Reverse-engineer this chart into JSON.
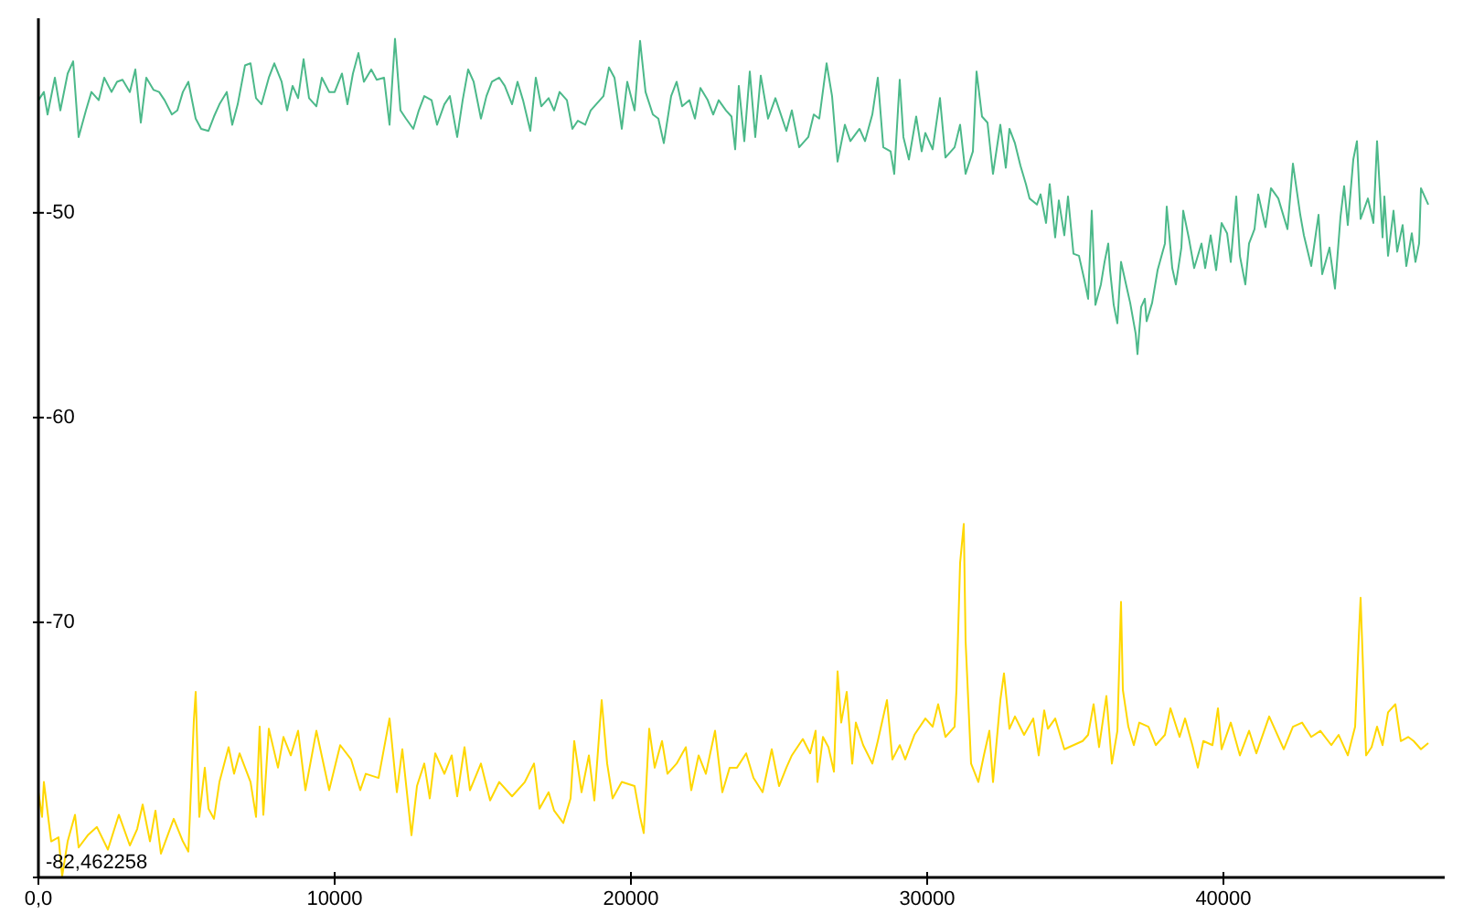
{
  "chart_data": {
    "type": "line",
    "xlim": [
      0,
      47470
    ],
    "ylim": [
      -82.462258,
      -40.5
    ],
    "xticks": [
      {
        "value": 0,
        "label": "0,0"
      },
      10000,
      20000,
      30000,
      40000
    ],
    "yticks": [
      -50,
      -60,
      -70,
      {
        "value": -82.462258,
        "label": "-82,462258"
      }
    ],
    "series": [
      {
        "color": "#4cb98a",
        "x": [
          0,
          185,
          309,
          556,
          741,
          988,
          1173,
          1358,
          1605,
          1790,
          2037,
          2222,
          2469,
          2654,
          2840,
          3087,
          3272,
          3457,
          3642,
          3889,
          4074,
          4259,
          4506,
          4691,
          4877,
          5062,
          5309,
          5494,
          5741,
          5926,
          6111,
          6358,
          6543,
          6728,
          6975,
          7161,
          7346,
          7531,
          7778,
          7963,
          8210,
          8395,
          8580,
          8766,
          8951,
          9136,
          9383,
          9568,
          9815,
          10000,
          10247,
          10432,
          10617,
          10803,
          10988,
          11235,
          11420,
          11667,
          11852,
          12037,
          12222,
          12407,
          12654,
          12840,
          13025,
          13272,
          13457,
          13704,
          13889,
          14136,
          14321,
          14506,
          14692,
          14938,
          15124,
          15309,
          15556,
          15741,
          15988,
          16173,
          16358,
          16605,
          16790,
          16976,
          17223,
          17408,
          17593,
          17840,
          18025,
          18210,
          18457,
          18642,
          18827,
          19074,
          19259,
          19445,
          19692,
          19877,
          20124,
          20309,
          20494,
          20741,
          20926,
          21111,
          21358,
          21544,
          21729,
          21976,
          22161,
          22346,
          22593,
          22778,
          22963,
          23210,
          23396,
          23519,
          23642,
          23828,
          24013,
          24198,
          24383,
          24630,
          24877,
          25247,
          25432,
          25679,
          25988,
          26173,
          26358,
          26605,
          26790,
          26976,
          27223,
          27408,
          27717,
          27902,
          28149,
          28334,
          28519,
          28766,
          28889,
          29074,
          29198,
          29383,
          29630,
          29815,
          29938,
          30185,
          30432,
          30618,
          30926,
          31111,
          31297,
          31544,
          31667,
          31852,
          32037,
          32222,
          32469,
          32655,
          32778,
          32963,
          33149,
          33334,
          33457,
          33704,
          33828,
          34013,
          34136,
          34321,
          34445,
          34630,
          34754,
          34939,
          35124,
          35310,
          35433,
          35556,
          35680,
          35865,
          35988,
          36112,
          36173,
          36297,
          36420,
          36544,
          36729,
          36853,
          37038,
          37100,
          37223,
          37347,
          37408,
          37593,
          37779,
          38026,
          38087,
          38273,
          38396,
          38581,
          38643,
          38828,
          39013,
          39260,
          39384,
          39569,
          39754,
          39939,
          40124,
          40248,
          40433,
          40556,
          40741,
          40865,
          41050,
          41174,
          41421,
          41606,
          41853,
          42162,
          42347,
          42594,
          42717,
          42964,
          43211,
          43334,
          43581,
          43766,
          43952,
          44075,
          44198,
          44384,
          44507,
          44631,
          44878,
          45063,
          45186,
          45372,
          45433,
          45557,
          45742,
          45865,
          46050,
          46174,
          46359,
          46482,
          46606,
          46668,
          46915
        ],
        "values": [
          -44.5,
          -44.1,
          -45.2,
          -43.4,
          -45.0,
          -43.2,
          -42.6,
          -46.3,
          -45.0,
          -44.1,
          -44.5,
          -43.4,
          -44.1,
          -43.6,
          -43.5,
          -44.1,
          -43.0,
          -45.6,
          -43.4,
          -44.0,
          -44.1,
          -44.5,
          -45.2,
          -45.0,
          -44.1,
          -43.6,
          -45.4,
          -45.9,
          -46.0,
          -45.3,
          -44.7,
          -44.1,
          -45.7,
          -44.7,
          -42.8,
          -42.7,
          -44.4,
          -44.7,
          -43.4,
          -42.7,
          -43.6,
          -45.0,
          -43.8,
          -44.4,
          -42.5,
          -44.4,
          -44.8,
          -43.4,
          -44.1,
          -44.1,
          -43.2,
          -44.7,
          -43.2,
          -42.2,
          -43.6,
          -43.0,
          -43.5,
          -43.4,
          -45.7,
          -41.5,
          -45.0,
          -45.4,
          -45.9,
          -45.0,
          -44.3,
          -44.5,
          -45.7,
          -44.7,
          -44.3,
          -46.3,
          -44.5,
          -43.0,
          -43.6,
          -45.4,
          -44.3,
          -43.6,
          -43.4,
          -43.8,
          -44.7,
          -43.6,
          -44.5,
          -46.0,
          -43.4,
          -44.8,
          -44.4,
          -45.0,
          -44.1,
          -44.5,
          -45.9,
          -45.5,
          -45.7,
          -45.0,
          -44.7,
          -44.3,
          -42.9,
          -43.4,
          -45.9,
          -43.6,
          -45.0,
          -41.6,
          -44.1,
          -45.2,
          -45.4,
          -46.6,
          -44.3,
          -43.6,
          -44.8,
          -44.5,
          -45.4,
          -43.9,
          -44.5,
          -45.2,
          -44.5,
          -45.0,
          -45.3,
          -46.9,
          -43.8,
          -46.5,
          -43.1,
          -46.3,
          -43.3,
          -45.4,
          -44.4,
          -46.0,
          -45.0,
          -46.8,
          -46.3,
          -45.2,
          -45.4,
          -42.7,
          -44.3,
          -47.5,
          -45.7,
          -46.5,
          -45.9,
          -46.5,
          -45.2,
          -43.4,
          -46.8,
          -47.0,
          -48.1,
          -43.5,
          -46.3,
          -47.4,
          -45.3,
          -47.0,
          -46.1,
          -46.9,
          -44.4,
          -47.3,
          -46.8,
          -45.7,
          -48.1,
          -47.0,
          -43.1,
          -45.3,
          -45.6,
          -48.1,
          -45.7,
          -47.8,
          -45.9,
          -46.6,
          -47.7,
          -48.6,
          -49.3,
          -49.6,
          -49.1,
          -50.5,
          -48.6,
          -51.2,
          -49.4,
          -51.1,
          -49.2,
          -52.0,
          -52.1,
          -53.3,
          -54.2,
          -49.9,
          -54.5,
          -53.5,
          -52.4,
          -51.5,
          -52.8,
          -54.5,
          -55.4,
          -52.4,
          -53.6,
          -54.4,
          -55.9,
          -56.9,
          -54.6,
          -54.2,
          -55.3,
          -54.4,
          -52.8,
          -51.5,
          -49.7,
          -52.7,
          -53.5,
          -51.7,
          -49.9,
          -51.2,
          -52.7,
          -51.5,
          -52.7,
          -51.1,
          -52.8,
          -50.5,
          -51.0,
          -52.4,
          -49.2,
          -52.1,
          -53.5,
          -51.5,
          -50.8,
          -49.1,
          -50.7,
          -48.8,
          -49.3,
          -50.8,
          -47.6,
          -50.1,
          -51.1,
          -52.6,
          -50.1,
          -53.0,
          -51.7,
          -53.7,
          -50.2,
          -48.7,
          -50.6,
          -47.4,
          -46.5,
          -50.3,
          -49.3,
          -50.5,
          -46.5,
          -51.2,
          -49.2,
          -52.1,
          -49.9,
          -51.9,
          -50.6,
          -52.6,
          -51.0,
          -52.4,
          -51.5,
          -48.8,
          -49.6
        ]
      },
      {
        "color": "#ffd700",
        "x": [
          0,
          123,
          185,
          432,
          679,
          802,
          988,
          1235,
          1358,
          1667,
          1975,
          2346,
          2716,
          3087,
          3334,
          3519,
          3766,
          3951,
          4136,
          4568,
          4877,
          5062,
          5247,
          5309,
          5432,
          5617,
          5741,
          5926,
          6111,
          6420,
          6605,
          6790,
          7161,
          7346,
          7469,
          7593,
          7778,
          8087,
          8272,
          8519,
          8766,
          9013,
          9383,
          9815,
          10186,
          10556,
          10865,
          11050,
          11482,
          11852,
          12099,
          12284,
          12593,
          12778,
          13025,
          13210,
          13395,
          13704,
          13951,
          14136,
          14383,
          14568,
          14938,
          15247,
          15556,
          15988,
          16420,
          16729,
          16914,
          17223,
          17408,
          17717,
          17963,
          18087,
          18334,
          18581,
          18766,
          19013,
          19198,
          19383,
          19692,
          20124,
          20309,
          20433,
          20618,
          20803,
          21050,
          21235,
          21544,
          21853,
          22038,
          22285,
          22531,
          22840,
          23087,
          23334,
          23581,
          23890,
          24137,
          24445,
          24754,
          25001,
          25248,
          25433,
          25803,
          26050,
          26235,
          26297,
          26482,
          26668,
          26853,
          26976,
          27099,
          27285,
          27470,
          27593,
          27840,
          28149,
          28334,
          28643,
          28828,
          29075,
          29260,
          29569,
          29939,
          30186,
          30371,
          30618,
          30927,
          30989,
          31112,
          31236,
          31297,
          31482,
          31729,
          31914,
          32100,
          32223,
          32470,
          32593,
          32778,
          32964,
          33272,
          33581,
          33766,
          33951,
          34075,
          34322,
          34630,
          34939,
          35248,
          35433,
          35618,
          35803,
          36050,
          36235,
          36421,
          36544,
          36606,
          36791,
          36976,
          37161,
          37470,
          37717,
          38026,
          38211,
          38520,
          38705,
          38952,
          39137,
          39322,
          39631,
          39816,
          39939,
          40248,
          40557,
          40866,
          41112,
          41545,
          42039,
          42347,
          42656,
          42964,
          43273,
          43643,
          43890,
          44199,
          44446,
          44570,
          44631,
          44816,
          45001,
          45186,
          45372,
          45557,
          45804,
          45989,
          46236,
          46421,
          46668,
          46915
        ],
        "values": [
          -78.3,
          -79.5,
          -77.8,
          -80.7,
          -80.5,
          -82.4,
          -80.7,
          -79.4,
          -81.0,
          -80.4,
          -80.0,
          -81.1,
          -79.4,
          -80.9,
          -80.1,
          -78.9,
          -80.7,
          -79.2,
          -81.3,
          -79.6,
          -80.7,
          -81.2,
          -74.8,
          -73.4,
          -79.5,
          -77.1,
          -79.1,
          -79.6,
          -77.8,
          -76.1,
          -77.4,
          -76.4,
          -77.8,
          -79.5,
          -75.1,
          -79.4,
          -75.2,
          -77.1,
          -75.6,
          -76.5,
          -75.3,
          -78.2,
          -75.3,
          -78.2,
          -76.0,
          -76.7,
          -78.2,
          -77.4,
          -77.6,
          -74.7,
          -78.3,
          -76.2,
          -80.4,
          -78.0,
          -76.9,
          -78.6,
          -76.4,
          -77.4,
          -76.5,
          -78.5,
          -76.1,
          -78.2,
          -76.9,
          -78.7,
          -77.8,
          -78.5,
          -77.8,
          -76.9,
          -79.1,
          -78.3,
          -79.2,
          -79.8,
          -78.6,
          -75.8,
          -78.3,
          -76.5,
          -78.7,
          -73.8,
          -76.9,
          -78.6,
          -77.8,
          -78.0,
          -79.5,
          -80.3,
          -75.2,
          -77.1,
          -75.8,
          -77.4,
          -76.9,
          -76.1,
          -78.2,
          -76.5,
          -77.4,
          -75.3,
          -78.3,
          -77.1,
          -77.1,
          -76.4,
          -77.6,
          -78.3,
          -76.2,
          -78.0,
          -77.1,
          -76.5,
          -75.7,
          -76.4,
          -75.3,
          -77.8,
          -75.6,
          -76.1,
          -77.3,
          -72.4,
          -74.9,
          -73.4,
          -76.9,
          -74.9,
          -76.0,
          -76.9,
          -75.8,
          -73.8,
          -76.7,
          -76.0,
          -76.7,
          -75.5,
          -74.7,
          -75.1,
          -74.0,
          -75.6,
          -75.1,
          -73.3,
          -67.1,
          -65.2,
          -70.9,
          -76.9,
          -77.8,
          -76.5,
          -75.3,
          -77.8,
          -73.8,
          -72.5,
          -75.2,
          -74.6,
          -75.5,
          -74.7,
          -76.5,
          -74.3,
          -75.2,
          -74.7,
          -76.2,
          -76.0,
          -75.8,
          -75.5,
          -74.0,
          -76.1,
          -73.6,
          -76.9,
          -75.3,
          -69.0,
          -73.3,
          -75.1,
          -76.0,
          -74.9,
          -75.1,
          -76.0,
          -75.5,
          -74.2,
          -75.6,
          -74.7,
          -76.0,
          -77.1,
          -75.8,
          -76.0,
          -74.2,
          -76.2,
          -74.9,
          -76.5,
          -75.3,
          -76.4,
          -74.6,
          -76.2,
          -75.1,
          -74.9,
          -75.6,
          -75.3,
          -76.0,
          -75.5,
          -76.5,
          -75.1,
          -70.7,
          -68.8,
          -76.5,
          -76.1,
          -75.1,
          -76.0,
          -74.4,
          -74.0,
          -75.8,
          -75.6,
          -75.8,
          -76.2,
          -75.9
        ]
      }
    ]
  }
}
